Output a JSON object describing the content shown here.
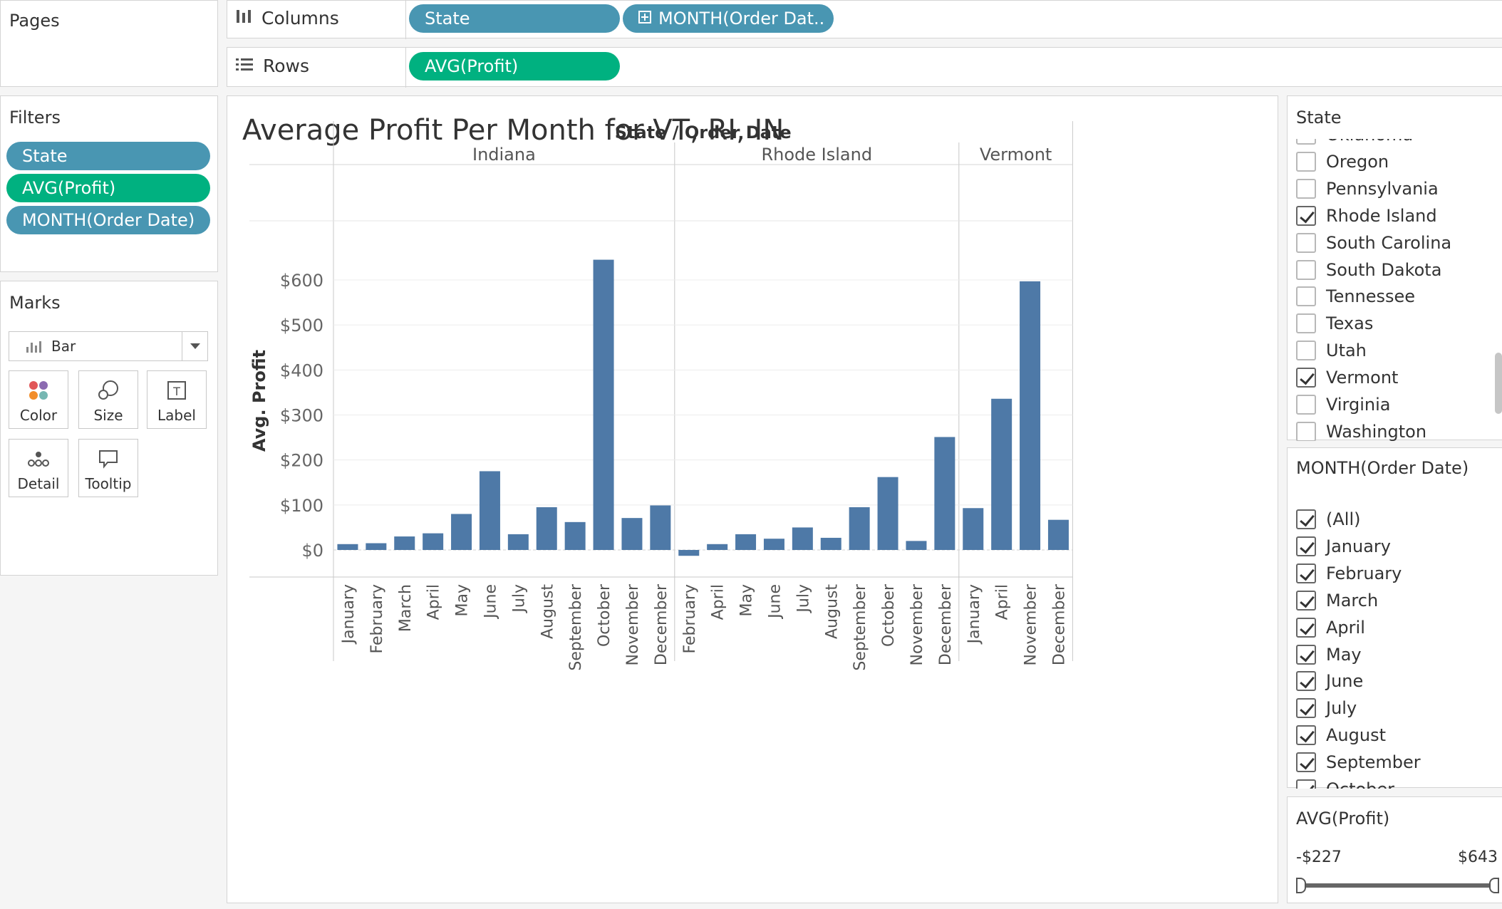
{
  "left": {
    "pages_title": "Pages",
    "filters_title": "Filters",
    "filters": [
      {
        "label": "State",
        "color": "#4996b2"
      },
      {
        "label": "AVG(Profit)",
        "color": "#00b180"
      },
      {
        "label": "MONTH(Order Date)",
        "color": "#4996b2"
      }
    ],
    "marks_title": "Marks",
    "mark_type": "Bar",
    "mark_buttons": [
      "Color",
      "Size",
      "Label",
      "Detail",
      "Tooltip"
    ]
  },
  "shelves": {
    "columns_label": "Columns",
    "rows_label": "Rows",
    "columns": [
      {
        "label": "State"
      },
      {
        "label": "MONTH(Order Dat.."
      }
    ],
    "rows": [
      {
        "label": "AVG(Profit)"
      }
    ]
  },
  "view": {
    "title": "Average Profit Per Month for VT, RI, IN",
    "header": "State / Order Date"
  },
  "chart_data": {
    "type": "bar",
    "ylabel": "Avg. Profit",
    "ylim": [
      -50,
      680
    ],
    "yticks": [
      "$600",
      "$500",
      "$400",
      "$300",
      "$200",
      "$100",
      "$0"
    ],
    "ytick_values": [
      600,
      500,
      400,
      300,
      200,
      100,
      0
    ],
    "bar_color": "#4e79a7",
    "panes": [
      {
        "name": "Indiana",
        "categories": [
          "January",
          "February",
          "March",
          "April",
          "May",
          "June",
          "July",
          "August",
          "September",
          "October",
          "November",
          "December"
        ],
        "values": [
          13,
          15,
          30,
          37,
          80,
          175,
          35,
          95,
          62,
          645,
          71,
          99
        ]
      },
      {
        "name": "Rhode Island",
        "categories": [
          "February",
          "April",
          "May",
          "June",
          "July",
          "August",
          "September",
          "October",
          "November",
          "December"
        ],
        "values": [
          -13,
          13,
          35,
          25,
          50,
          27,
          95,
          162,
          20,
          251
        ]
      },
      {
        "name": "Vermont",
        "categories": [
          "January",
          "April",
          "November",
          "December"
        ],
        "values": [
          93,
          336,
          597,
          67
        ]
      }
    ]
  },
  "state_filter": {
    "title": "State",
    "items": [
      {
        "label": "Oklahoma",
        "checked": false
      },
      {
        "label": "Oregon",
        "checked": false
      },
      {
        "label": "Pennsylvania",
        "checked": false
      },
      {
        "label": "Rhode Island",
        "checked": true
      },
      {
        "label": "South Carolina",
        "checked": false
      },
      {
        "label": "South Dakota",
        "checked": false
      },
      {
        "label": "Tennessee",
        "checked": false
      },
      {
        "label": "Texas",
        "checked": false
      },
      {
        "label": "Utah",
        "checked": false
      },
      {
        "label": "Vermont",
        "checked": true
      },
      {
        "label": "Virginia",
        "checked": false
      },
      {
        "label": "Washington",
        "checked": false
      }
    ]
  },
  "month_filter": {
    "title": "MONTH(Order Date)",
    "items": [
      {
        "label": "(All)",
        "checked": true
      },
      {
        "label": "January",
        "checked": true
      },
      {
        "label": "February",
        "checked": true
      },
      {
        "label": "March",
        "checked": true
      },
      {
        "label": "April",
        "checked": true
      },
      {
        "label": "May",
        "checked": true
      },
      {
        "label": "June",
        "checked": true
      },
      {
        "label": "July",
        "checked": true
      },
      {
        "label": "August",
        "checked": true
      },
      {
        "label": "September",
        "checked": true
      },
      {
        "label": "October",
        "checked": true
      }
    ]
  },
  "profit_filter": {
    "title": "AVG(Profit)",
    "min_label": "-$227",
    "max_label": "$643",
    "range_fraction": [
      0.0,
      1.0
    ]
  }
}
